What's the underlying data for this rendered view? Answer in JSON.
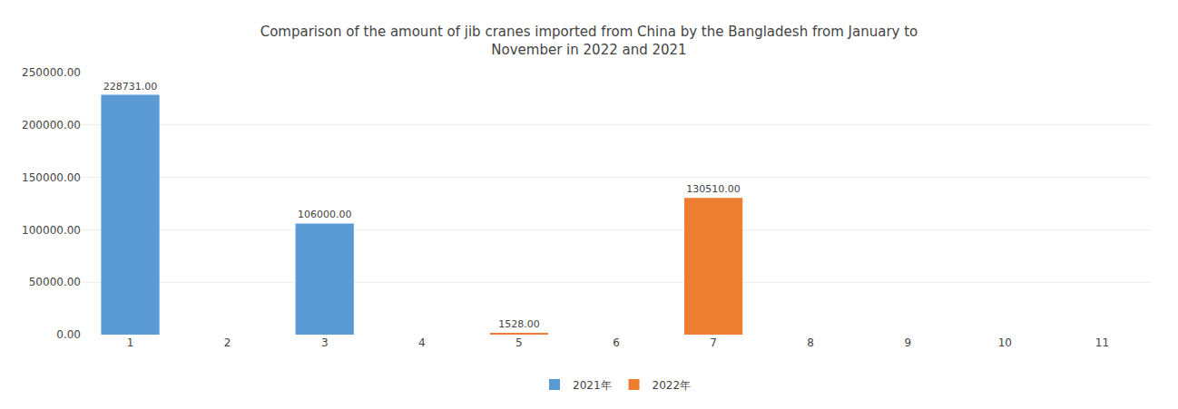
{
  "chart_data": {
    "type": "bar",
    "title": "Comparison of the amount of jib cranes imported from China by the Bangladesh from January to\nNovember in 2022 and 2021",
    "categories": [
      "1",
      "2",
      "3",
      "4",
      "5",
      "6",
      "7",
      "8",
      "9",
      "10",
      "11"
    ],
    "series": [
      {
        "name": "2021年",
        "color": "#5B9BD5",
        "values": [
          228731.0,
          0,
          106000.0,
          0,
          0,
          0,
          0,
          0,
          0,
          0,
          0
        ],
        "value_labels": [
          "228731.00",
          null,
          "106000.00",
          null,
          null,
          null,
          null,
          null,
          null,
          null,
          null
        ]
      },
      {
        "name": "2022年",
        "color": "#ED7D31",
        "values": [
          0,
          0,
          0,
          0,
          1528.0,
          0,
          130510.0,
          0,
          0,
          0,
          0
        ],
        "value_labels": [
          null,
          null,
          null,
          null,
          "1528.00",
          null,
          "130510.00",
          null,
          null,
          null,
          null
        ]
      }
    ],
    "ylim": [
      0,
      250000
    ],
    "yticks": [
      {
        "value": 0,
        "label": "0.00"
      },
      {
        "value": 50000,
        "label": "50000.00"
      },
      {
        "value": 100000,
        "label": "100000.00"
      },
      {
        "value": 150000,
        "label": "150000.00"
      },
      {
        "value": 200000,
        "label": "200000.00"
      },
      {
        "value": 250000,
        "label": "250000.00"
      }
    ],
    "grid": true,
    "legend": "bottom",
    "data_labels": true
  }
}
